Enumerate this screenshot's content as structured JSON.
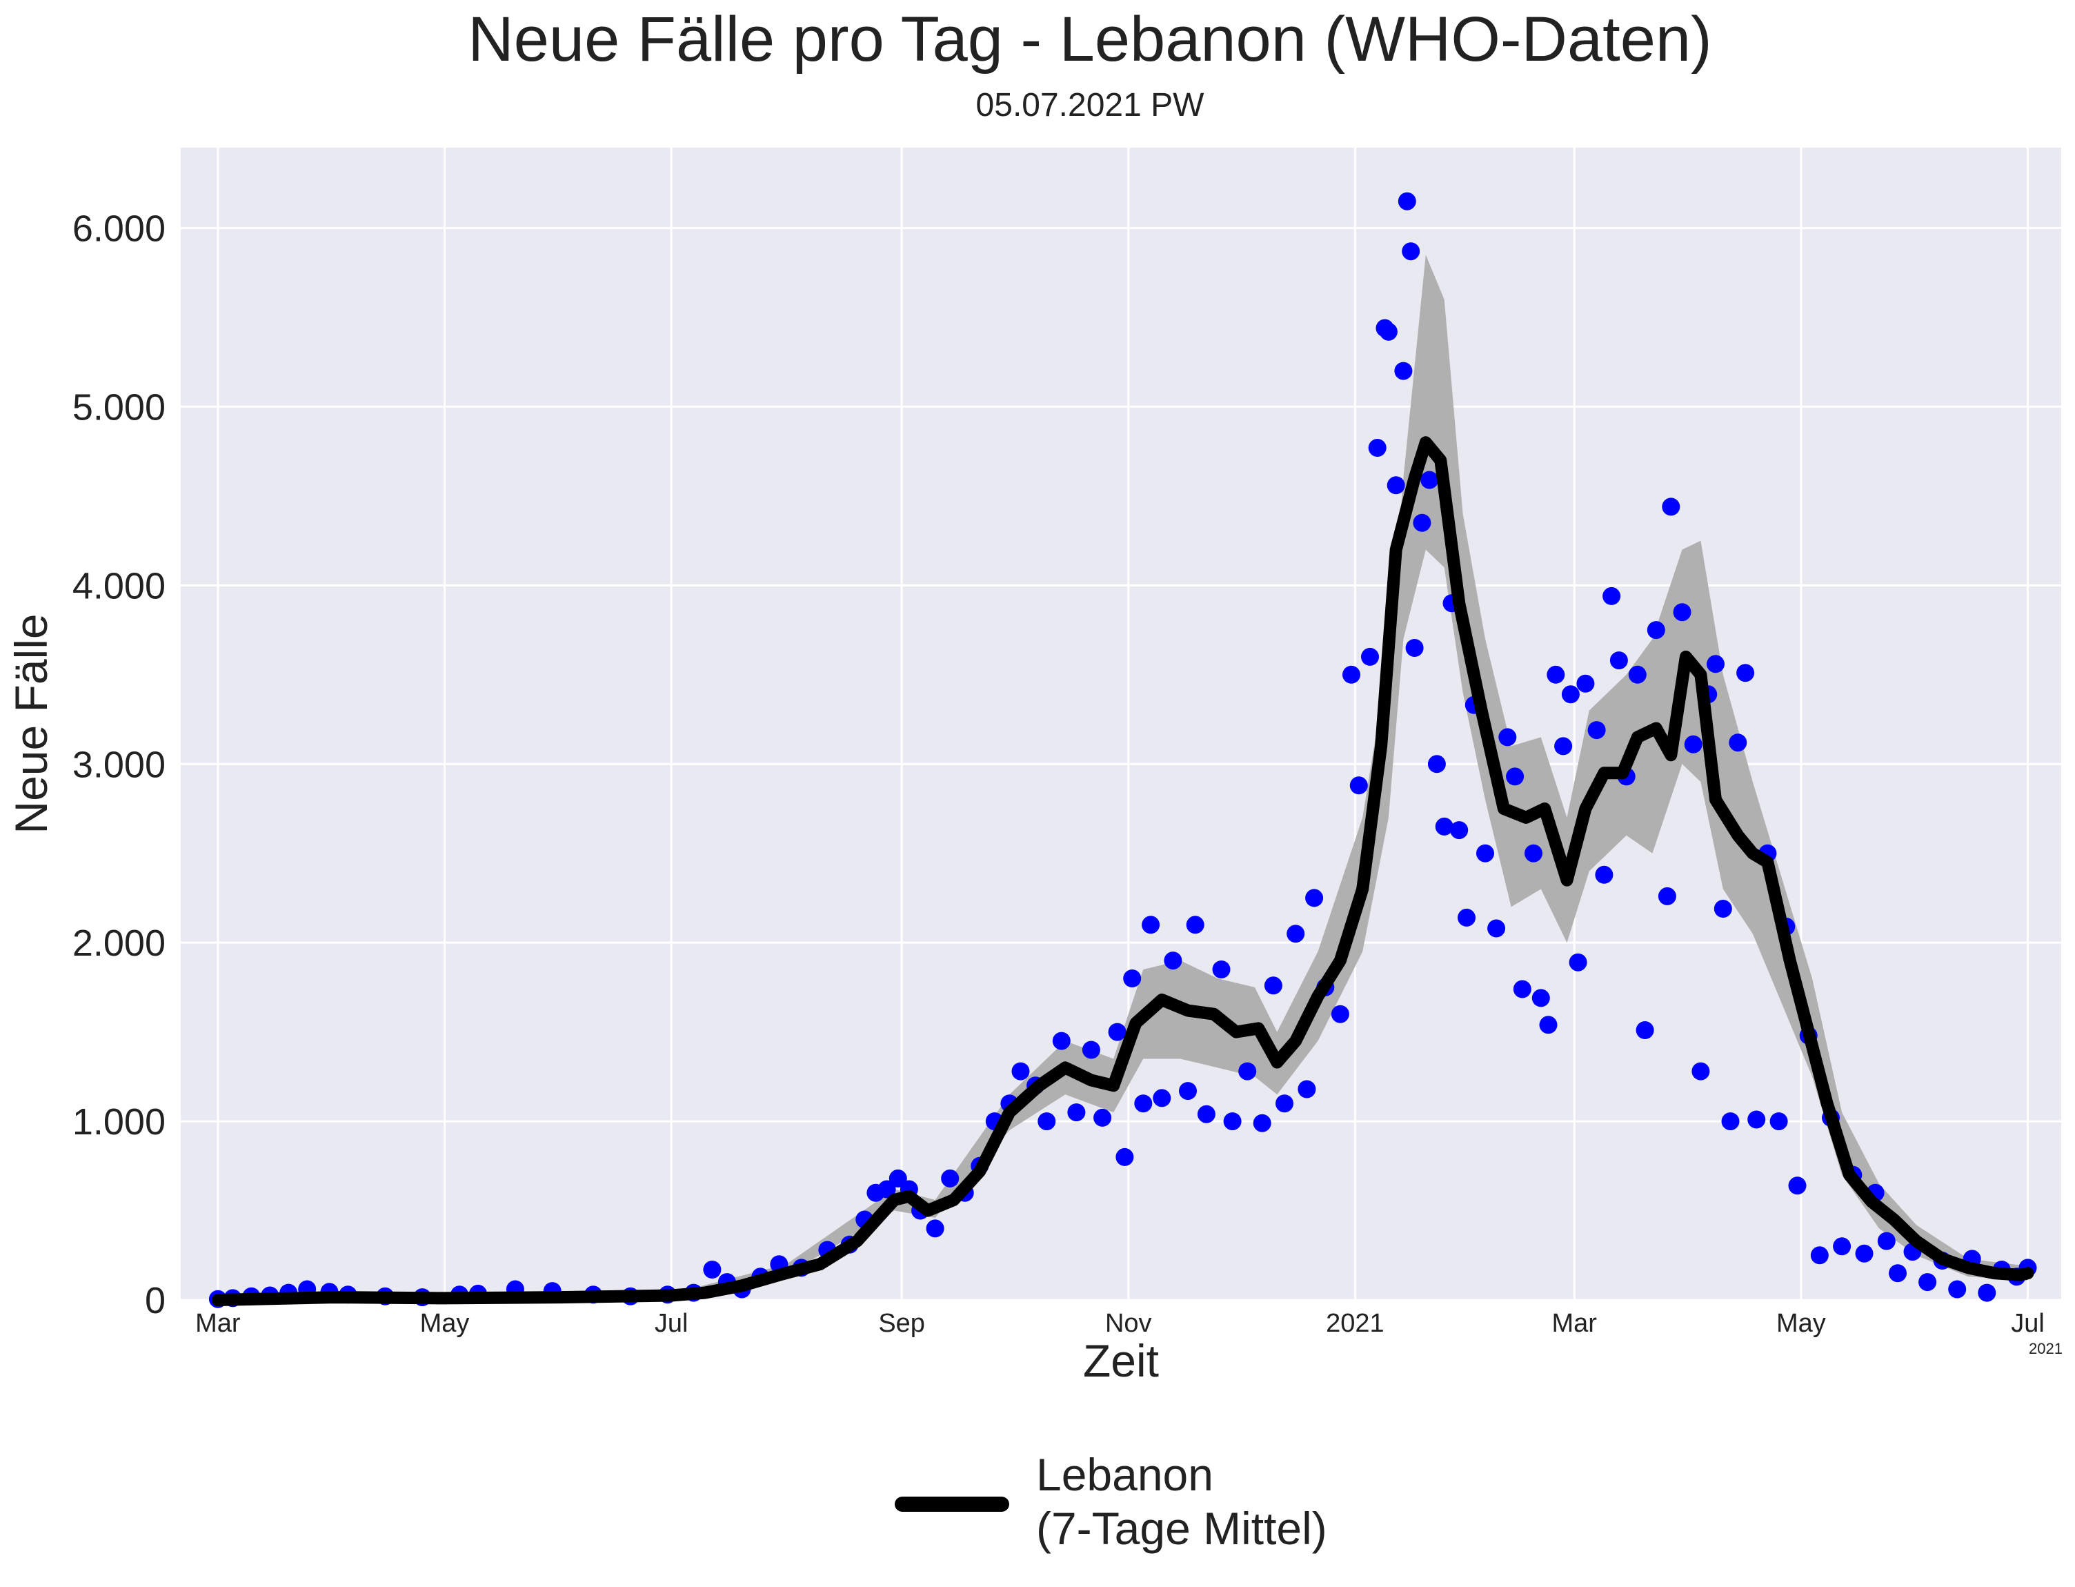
{
  "chart_data": {
    "type": "line",
    "title": "Neue Fälle pro Tag - Lebanon (WHO-Daten)",
    "subtitle": "05.07.2021 PW",
    "xlabel": "Zeit",
    "ylabel": "Neue Fälle",
    "x_offset_label": "2021",
    "x_range": [
      "2020-02-20",
      "2021-07-10"
    ],
    "ylim": [
      0,
      6450
    ],
    "y_ticks": [
      {
        "value": 0,
        "label": "0"
      },
      {
        "value": 1000,
        "label": "1.000"
      },
      {
        "value": 2000,
        "label": "2.000"
      },
      {
        "value": 3000,
        "label": "3.000"
      },
      {
        "value": 4000,
        "label": "4.000"
      },
      {
        "value": 5000,
        "label": "5.000"
      },
      {
        "value": 6000,
        "label": "6.000"
      }
    ],
    "x_ticks": [
      {
        "date": "2020-03-01",
        "label": "Mar"
      },
      {
        "date": "2020-05-01",
        "label": "May"
      },
      {
        "date": "2020-07-01",
        "label": "Jul"
      },
      {
        "date": "2020-09-01",
        "label": "Sep"
      },
      {
        "date": "2020-11-01",
        "label": "Nov"
      },
      {
        "date": "2021-01-01",
        "label": "2021"
      },
      {
        "date": "2021-03-01",
        "label": "Mar"
      },
      {
        "date": "2021-05-01",
        "label": "May"
      },
      {
        "date": "2021-07-01",
        "label": "Jul"
      }
    ],
    "grid": true,
    "legend_position": "bottom-center",
    "series": [
      {
        "name": "Lebanon\n(7-Tage Mittel)",
        "kind": "line",
        "color": "#000000",
        "points": [
          [
            "2020-03-01",
            0
          ],
          [
            "2020-04-01",
            15
          ],
          [
            "2020-05-01",
            10
          ],
          [
            "2020-06-01",
            15
          ],
          [
            "2020-07-01",
            25
          ],
          [
            "2020-07-10",
            40
          ],
          [
            "2020-07-20",
            80
          ],
          [
            "2020-07-30",
            140
          ],
          [
            "2020-08-10",
            200
          ],
          [
            "2020-08-20",
            330
          ],
          [
            "2020-08-30",
            560
          ],
          [
            "2020-09-03",
            580
          ],
          [
            "2020-09-08",
            500
          ],
          [
            "2020-09-15",
            560
          ],
          [
            "2020-09-22",
            720
          ],
          [
            "2020-09-30",
            1050
          ],
          [
            "2020-10-08",
            1200
          ],
          [
            "2020-10-15",
            1300
          ],
          [
            "2020-10-22",
            1230
          ],
          [
            "2020-10-28",
            1200
          ],
          [
            "2020-11-03",
            1550
          ],
          [
            "2020-11-10",
            1680
          ],
          [
            "2020-11-17",
            1620
          ],
          [
            "2020-11-24",
            1600
          ],
          [
            "2020-11-30",
            1500
          ],
          [
            "2020-12-06",
            1520
          ],
          [
            "2020-12-11",
            1330
          ],
          [
            "2020-12-16",
            1450
          ],
          [
            "2020-12-22",
            1700
          ],
          [
            "2020-12-28",
            1900
          ],
          [
            "2021-01-03",
            2300
          ],
          [
            "2021-01-08",
            3100
          ],
          [
            "2021-01-12",
            4200
          ],
          [
            "2021-01-17",
            4600
          ],
          [
            "2021-01-20",
            4800
          ],
          [
            "2021-01-24",
            4700
          ],
          [
            "2021-01-29",
            3900
          ],
          [
            "2021-02-04",
            3300
          ],
          [
            "2021-02-10",
            2750
          ],
          [
            "2021-02-16",
            2700
          ],
          [
            "2021-02-21",
            2750
          ],
          [
            "2021-02-27",
            2350
          ],
          [
            "2021-03-04",
            2750
          ],
          [
            "2021-03-09",
            2950
          ],
          [
            "2021-03-14",
            2950
          ],
          [
            "2021-03-18",
            3150
          ],
          [
            "2021-03-23",
            3200
          ],
          [
            "2021-03-27",
            3050
          ],
          [
            "2021-03-31",
            3600
          ],
          [
            "2021-04-04",
            3500
          ],
          [
            "2021-04-08",
            2800
          ],
          [
            "2021-04-14",
            2600
          ],
          [
            "2021-04-18",
            2500
          ],
          [
            "2021-04-22",
            2450
          ],
          [
            "2021-04-28",
            1900
          ],
          [
            "2021-05-03",
            1500
          ],
          [
            "2021-05-08",
            1100
          ],
          [
            "2021-05-14",
            700
          ],
          [
            "2021-05-20",
            550
          ],
          [
            "2021-05-26",
            450
          ],
          [
            "2021-06-01",
            330
          ],
          [
            "2021-06-08",
            230
          ],
          [
            "2021-06-15",
            180
          ],
          [
            "2021-06-22",
            150
          ],
          [
            "2021-06-29",
            140
          ],
          [
            "2021-07-01",
            150
          ]
        ]
      },
      {
        "name": "",
        "kind": "band",
        "color": "#b0b0b0",
        "points": [
          [
            "2020-03-01",
            0,
            0
          ],
          [
            "2020-07-01",
            15,
            35
          ],
          [
            "2020-08-01",
            140,
            200
          ],
          [
            "2020-08-30",
            500,
            620
          ],
          [
            "2020-09-10",
            460,
            560
          ],
          [
            "2020-09-30",
            950,
            1150
          ],
          [
            "2020-10-15",
            1150,
            1450
          ],
          [
            "2020-10-28",
            1050,
            1350
          ],
          [
            "2020-11-05",
            1350,
            1850
          ],
          [
            "2020-11-15",
            1350,
            1900
          ],
          [
            "2020-11-25",
            1300,
            1800
          ],
          [
            "2020-12-05",
            1250,
            1750
          ],
          [
            "2020-12-11",
            1150,
            1500
          ],
          [
            "2020-12-22",
            1450,
            1950
          ],
          [
            "2021-01-03",
            1950,
            2700
          ],
          [
            "2021-01-10",
            2700,
            3600
          ],
          [
            "2021-01-14",
            3700,
            4600
          ],
          [
            "2021-01-20",
            4200,
            5850
          ],
          [
            "2021-01-25",
            4100,
            5600
          ],
          [
            "2021-01-30",
            3400,
            4400
          ],
          [
            "2021-02-05",
            2800,
            3700
          ],
          [
            "2021-02-12",
            2200,
            3100
          ],
          [
            "2021-02-20",
            2300,
            3150
          ],
          [
            "2021-02-27",
            2000,
            2700
          ],
          [
            "2021-03-05",
            2400,
            3300
          ],
          [
            "2021-03-15",
            2600,
            3500
          ],
          [
            "2021-03-22",
            2500,
            3700
          ],
          [
            "2021-03-30",
            3000,
            4200
          ],
          [
            "2021-04-04",
            2900,
            4250
          ],
          [
            "2021-04-10",
            2300,
            3500
          ],
          [
            "2021-04-18",
            2050,
            2900
          ],
          [
            "2021-04-26",
            1650,
            2350
          ],
          [
            "2021-05-04",
            1250,
            1800
          ],
          [
            "2021-05-12",
            700,
            1050
          ],
          [
            "2021-05-22",
            400,
            650
          ],
          [
            "2021-06-01",
            250,
            420
          ],
          [
            "2021-06-15",
            130,
            230
          ],
          [
            "2021-07-01",
            110,
            190
          ]
        ]
      },
      {
        "name": "",
        "kind": "scatter",
        "color": "#0000ff",
        "points": [
          [
            "2020-03-01",
            5
          ],
          [
            "2020-03-05",
            10
          ],
          [
            "2020-03-10",
            20
          ],
          [
            "2020-03-15",
            25
          ],
          [
            "2020-03-20",
            40
          ],
          [
            "2020-03-25",
            60
          ],
          [
            "2020-03-31",
            45
          ],
          [
            "2020-04-05",
            30
          ],
          [
            "2020-04-15",
            20
          ],
          [
            "2020-04-25",
            15
          ],
          [
            "2020-05-05",
            30
          ],
          [
            "2020-05-10",
            35
          ],
          [
            "2020-05-20",
            60
          ],
          [
            "2020-05-30",
            50
          ],
          [
            "2020-06-10",
            30
          ],
          [
            "2020-06-20",
            20
          ],
          [
            "2020-06-30",
            30
          ],
          [
            "2020-07-07",
            40
          ],
          [
            "2020-07-12",
            170
          ],
          [
            "2020-07-16",
            100
          ],
          [
            "2020-07-20",
            60
          ],
          [
            "2020-07-25",
            130
          ],
          [
            "2020-07-30",
            200
          ],
          [
            "2020-08-05",
            180
          ],
          [
            "2020-08-12",
            280
          ],
          [
            "2020-08-18",
            310
          ],
          [
            "2020-08-22",
            450
          ],
          [
            "2020-08-25",
            600
          ],
          [
            "2020-08-28",
            620
          ],
          [
            "2020-08-31",
            680
          ],
          [
            "2020-09-03",
            620
          ],
          [
            "2020-09-06",
            500
          ],
          [
            "2020-09-10",
            400
          ],
          [
            "2020-09-14",
            680
          ],
          [
            "2020-09-18",
            600
          ],
          [
            "2020-09-22",
            750
          ],
          [
            "2020-09-26",
            1000
          ],
          [
            "2020-09-30",
            1100
          ],
          [
            "2020-10-03",
            1280
          ],
          [
            "2020-10-07",
            1200
          ],
          [
            "2020-10-10",
            1000
          ],
          [
            "2020-10-14",
            1450
          ],
          [
            "2020-10-18",
            1050
          ],
          [
            "2020-10-22",
            1400
          ],
          [
            "2020-10-25",
            1020
          ],
          [
            "2020-10-29",
            1500
          ],
          [
            "2020-10-31",
            800
          ],
          [
            "2020-11-02",
            1800
          ],
          [
            "2020-11-05",
            1100
          ],
          [
            "2020-11-07",
            2100
          ],
          [
            "2020-11-10",
            1130
          ],
          [
            "2020-11-13",
            1900
          ],
          [
            "2020-11-17",
            1170
          ],
          [
            "2020-11-19",
            2100
          ],
          [
            "2020-11-22",
            1040
          ],
          [
            "2020-11-26",
            1850
          ],
          [
            "2020-11-29",
            1000
          ],
          [
            "2020-12-03",
            1280
          ],
          [
            "2020-12-07",
            990
          ],
          [
            "2020-12-10",
            1760
          ],
          [
            "2020-12-13",
            1100
          ],
          [
            "2020-12-16",
            2050
          ],
          [
            "2020-12-19",
            1180
          ],
          [
            "2020-12-21",
            2250
          ],
          [
            "2020-12-24",
            1750
          ],
          [
            "2020-12-28",
            1600
          ],
          [
            "2020-12-31",
            3500
          ],
          [
            "2021-01-02",
            2880
          ],
          [
            "2021-01-05",
            3600
          ],
          [
            "2021-01-07",
            4770
          ],
          [
            "2021-01-09",
            5440
          ],
          [
            "2021-01-10",
            5420
          ],
          [
            "2021-01-12",
            4560
          ],
          [
            "2021-01-14",
            5200
          ],
          [
            "2021-01-15",
            6150
          ],
          [
            "2021-01-16",
            5870
          ],
          [
            "2021-01-17",
            3650
          ],
          [
            "2021-01-19",
            4350
          ],
          [
            "2021-01-21",
            4590
          ],
          [
            "2021-01-23",
            3000
          ],
          [
            "2021-01-25",
            2650
          ],
          [
            "2021-01-27",
            3900
          ],
          [
            "2021-01-29",
            2630
          ],
          [
            "2021-01-31",
            2140
          ],
          [
            "2021-02-02",
            3330
          ],
          [
            "2021-02-05",
            2500
          ],
          [
            "2021-02-08",
            2080
          ],
          [
            "2021-02-11",
            3150
          ],
          [
            "2021-02-13",
            2930
          ],
          [
            "2021-02-15",
            1740
          ],
          [
            "2021-02-18",
            2500
          ],
          [
            "2021-02-20",
            1690
          ],
          [
            "2021-02-22",
            1540
          ],
          [
            "2021-02-24",
            3500
          ],
          [
            "2021-02-26",
            3100
          ],
          [
            "2021-02-28",
            3390
          ],
          [
            "2021-03-02",
            1890
          ],
          [
            "2021-03-04",
            3450
          ],
          [
            "2021-03-07",
            3190
          ],
          [
            "2021-03-09",
            2380
          ],
          [
            "2021-03-11",
            3940
          ],
          [
            "2021-03-13",
            3580
          ],
          [
            "2021-03-15",
            2930
          ],
          [
            "2021-03-18",
            3500
          ],
          [
            "2021-03-20",
            1510
          ],
          [
            "2021-03-23",
            3750
          ],
          [
            "2021-03-26",
            2260
          ],
          [
            "2021-03-27",
            4440
          ],
          [
            "2021-03-30",
            3850
          ],
          [
            "2021-04-02",
            3110
          ],
          [
            "2021-04-04",
            1280
          ],
          [
            "2021-04-06",
            3390
          ],
          [
            "2021-04-08",
            3560
          ],
          [
            "2021-04-10",
            2190
          ],
          [
            "2021-04-12",
            1000
          ],
          [
            "2021-04-14",
            3120
          ],
          [
            "2021-04-16",
            3510
          ],
          [
            "2021-04-19",
            1010
          ],
          [
            "2021-04-22",
            2500
          ],
          [
            "2021-04-25",
            1000
          ],
          [
            "2021-04-27",
            2090
          ],
          [
            "2021-04-30",
            640
          ],
          [
            "2021-05-03",
            1480
          ],
          [
            "2021-05-06",
            250
          ],
          [
            "2021-05-09",
            1020
          ],
          [
            "2021-05-12",
            300
          ],
          [
            "2021-05-15",
            700
          ],
          [
            "2021-05-18",
            260
          ],
          [
            "2021-05-21",
            600
          ],
          [
            "2021-05-24",
            330
          ],
          [
            "2021-05-27",
            150
          ],
          [
            "2021-05-31",
            270
          ],
          [
            "2021-06-04",
            100
          ],
          [
            "2021-06-08",
            220
          ],
          [
            "2021-06-12",
            60
          ],
          [
            "2021-06-16",
            230
          ],
          [
            "2021-06-20",
            40
          ],
          [
            "2021-06-24",
            170
          ],
          [
            "2021-06-28",
            130
          ],
          [
            "2021-07-01",
            180
          ]
        ]
      }
    ]
  }
}
